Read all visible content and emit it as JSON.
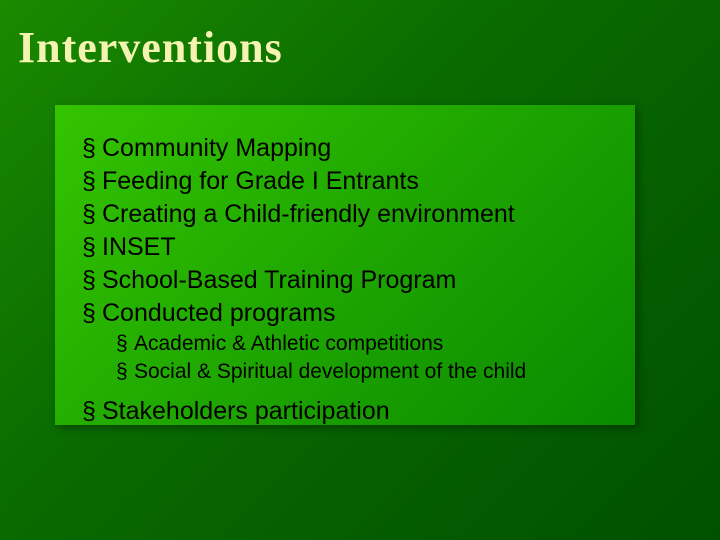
{
  "slide": {
    "title": "Interventions",
    "title_color": "#f5f3b2",
    "title_fontsize": 44,
    "body_color": "#000000",
    "body_fontsize_l1": 25,
    "body_fontsize_l2": 21,
    "bullet_glyph": "§",
    "items": [
      {
        "level": 1,
        "text": "Community Mapping"
      },
      {
        "level": 1,
        "text": "Feeding for Grade I Entrants"
      },
      {
        "level": 1,
        "text": "Creating a Child-friendly environment"
      },
      {
        "level": 1,
        "text": "INSET"
      },
      {
        "level": 1,
        "text": "School-Based Training Program"
      },
      {
        "level": 1,
        "text": "Conducted programs"
      },
      {
        "level": 2,
        "text": "Academic & Athletic competitions"
      },
      {
        "level": 2,
        "text": "Social & Spiritual development of the child"
      },
      {
        "level": 1,
        "text": "Stakeholders participation",
        "gap_before": true
      }
    ],
    "background_gradient": [
      "#1a8a00",
      "#0a6b00",
      "#005000"
    ],
    "box_gradient": [
      "#34c400",
      "#1aa000",
      "#0a8a00"
    ]
  }
}
